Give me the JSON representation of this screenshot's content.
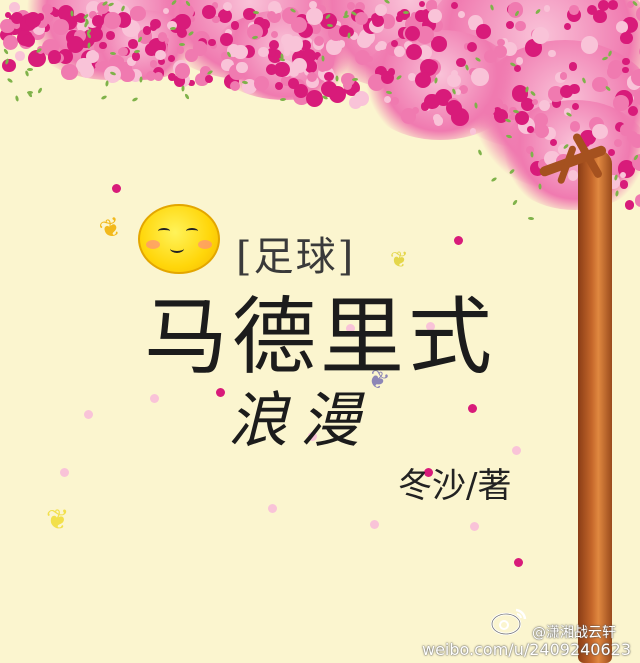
{
  "cover": {
    "genre_tag": "[足球]",
    "title_main": "马德里式",
    "title_sub": "浪漫",
    "author": "冬沙/著"
  },
  "watermark": {
    "handle": "@潇湘战云轩",
    "url": "weibo.com/u/2409240623"
  },
  "colors": {
    "background": "#fbf5cf",
    "blossom_pink": "#f07ab0",
    "blossom_magenta": "#d81b7a",
    "blossom_light": "#f9c3d8",
    "trunk": "#c4662a",
    "leaf": "#7fb24a",
    "title_ink": "#1c1c1c"
  },
  "icons": [
    "smiley-face-icon",
    "butterfly-icon",
    "weibo-logo-icon"
  ]
}
